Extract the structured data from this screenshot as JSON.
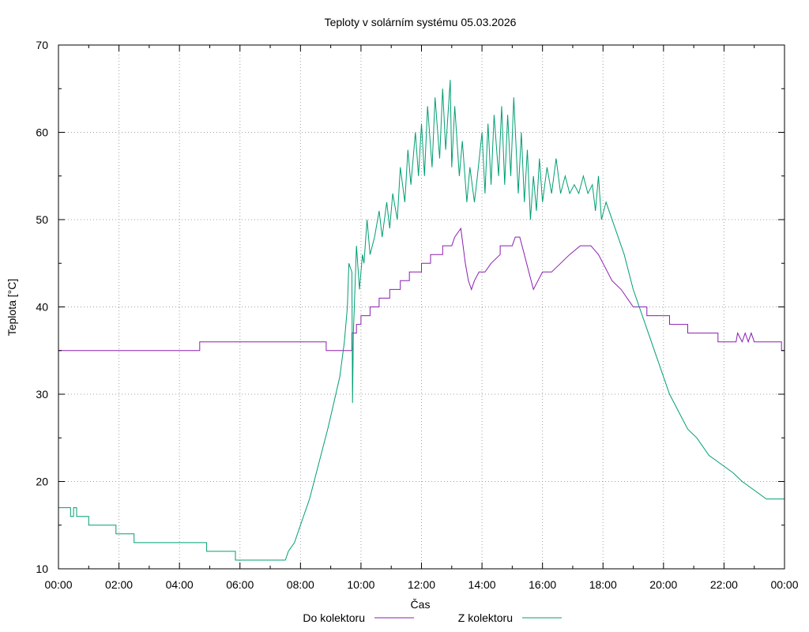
{
  "chart_data": {
    "type": "line",
    "title": "Teploty v solárním systému 05.03.2026",
    "xlabel": "Čas",
    "ylabel": "Teplota [°C]",
    "xlim": [
      0,
      24
    ],
    "ylim": [
      10,
      70
    ],
    "grid": true,
    "legend_position": "bottom-center",
    "x_ticks": [
      0,
      2,
      4,
      6,
      8,
      10,
      12,
      14,
      16,
      18,
      20,
      22,
      24
    ],
    "x_tick_labels": [
      "00:00",
      "02:00",
      "04:00",
      "06:00",
      "08:00",
      "10:00",
      "12:00",
      "14:00",
      "16:00",
      "18:00",
      "20:00",
      "22:00",
      "00:00"
    ],
    "y_ticks": [
      10,
      20,
      30,
      40,
      50,
      60,
      70
    ],
    "y_tick_labels": [
      "10",
      "20",
      "30",
      "40",
      "50",
      "60",
      "70"
    ],
    "series": [
      {
        "name": "Do kolektoru",
        "color": "#8a1fb0",
        "x": [
          0,
          4.67,
          4.67,
          8.85,
          8.85,
          9.7,
          9.7,
          9.85,
          9.85,
          10.0,
          10.0,
          10.3,
          10.3,
          10.6,
          10.6,
          10.95,
          10.95,
          11.3,
          11.3,
          11.6,
          11.6,
          12.0,
          12.0,
          12.3,
          12.3,
          12.7,
          12.7,
          13.0,
          13.1,
          13.3,
          13.45,
          13.55,
          13.65,
          13.75,
          13.9,
          14.1,
          14.3,
          14.6,
          14.6,
          15.0,
          15.1,
          15.25,
          15.4,
          15.55,
          15.7,
          15.85,
          16.0,
          16.3,
          16.6,
          16.9,
          17.25,
          17.6,
          17.85,
          18.0,
          18.3,
          18.6,
          19.0,
          19.45,
          19.45,
          20.2,
          20.2,
          20.8,
          20.8,
          21.8,
          21.8,
          22.4,
          22.45,
          22.6,
          22.7,
          22.8,
          22.9,
          23.0,
          23.9,
          23.9,
          24.0
        ],
        "values": [
          35,
          35,
          36,
          36,
          35,
          35,
          37,
          37,
          38,
          38,
          39,
          39,
          40,
          40,
          41,
          41,
          42,
          42,
          43,
          43,
          44,
          44,
          45,
          45,
          46,
          46,
          47,
          47,
          48,
          49,
          45,
          43,
          42,
          43,
          44,
          44,
          45,
          46,
          47,
          47,
          48,
          48,
          46,
          44,
          42,
          43,
          44,
          44,
          45,
          46,
          47,
          47,
          46,
          45,
          43,
          42,
          40,
          40,
          39,
          39,
          38,
          38,
          37,
          37,
          36,
          36,
          37,
          36,
          37,
          36,
          37,
          36,
          36,
          35,
          35
        ]
      },
      {
        "name": "Z kolektoru",
        "color": "#009e73",
        "x": [
          0,
          0.4,
          0.4,
          0.5,
          0.5,
          0.6,
          0.6,
          1.0,
          1.0,
          1.9,
          1.9,
          2.5,
          2.5,
          4.9,
          4.9,
          5.85,
          5.85,
          7.5,
          7.6,
          7.8,
          8.0,
          8.3,
          8.6,
          8.9,
          9.1,
          9.3,
          9.45,
          9.55,
          9.6,
          9.7,
          9.72,
          9.75,
          9.85,
          9.95,
          10.05,
          10.1,
          10.2,
          10.3,
          10.45,
          10.6,
          10.7,
          10.85,
          10.95,
          11.05,
          11.2,
          11.3,
          11.45,
          11.55,
          11.65,
          11.8,
          11.9,
          12.0,
          12.1,
          12.2,
          12.35,
          12.45,
          12.6,
          12.7,
          12.8,
          12.95,
          13.0,
          13.1,
          13.25,
          13.35,
          13.5,
          13.6,
          13.75,
          13.85,
          14.0,
          14.1,
          14.2,
          14.3,
          14.4,
          14.55,
          14.65,
          14.75,
          14.85,
          14.95,
          15.05,
          15.2,
          15.3,
          15.4,
          15.5,
          15.6,
          15.7,
          15.8,
          15.9,
          16.0,
          16.15,
          16.3,
          16.45,
          16.6,
          16.75,
          16.9,
          17.05,
          17.2,
          17.35,
          17.5,
          17.65,
          17.75,
          17.85,
          17.95,
          18.1,
          18.4,
          18.7,
          19.0,
          19.3,
          19.6,
          19.9,
          20.2,
          20.5,
          20.8,
          21.1,
          21.5,
          21.9,
          22.3,
          22.6,
          23.0,
          23.4,
          23.8,
          24.0
        ],
        "values": [
          17,
          17,
          16,
          16,
          17,
          17,
          16,
          16,
          15,
          15,
          14,
          14,
          13,
          13,
          12,
          12,
          11,
          11,
          12,
          13,
          15,
          18,
          22,
          26,
          29,
          32,
          36,
          40,
          45,
          44,
          29,
          37,
          47,
          42,
          46,
          45,
          50,
          46,
          48,
          51,
          48,
          52,
          49,
          53,
          50,
          56,
          52,
          58,
          54,
          60,
          55,
          61,
          55,
          63,
          56,
          64,
          57,
          65,
          58,
          66,
          56,
          63,
          55,
          59,
          52,
          56,
          52,
          55,
          60,
          53,
          61,
          54,
          62,
          55,
          63,
          54,
          62,
          55,
          64,
          53,
          60,
          52,
          58,
          50,
          55,
          51,
          57,
          52,
          56,
          53,
          57,
          53,
          55,
          53,
          54,
          53,
          55,
          53,
          54,
          51,
          55,
          50,
          52,
          49,
          46,
          42,
          39,
          36,
          33,
          30,
          28,
          26,
          25,
          23,
          22,
          21,
          20,
          19,
          18,
          18,
          18
        ]
      }
    ]
  }
}
